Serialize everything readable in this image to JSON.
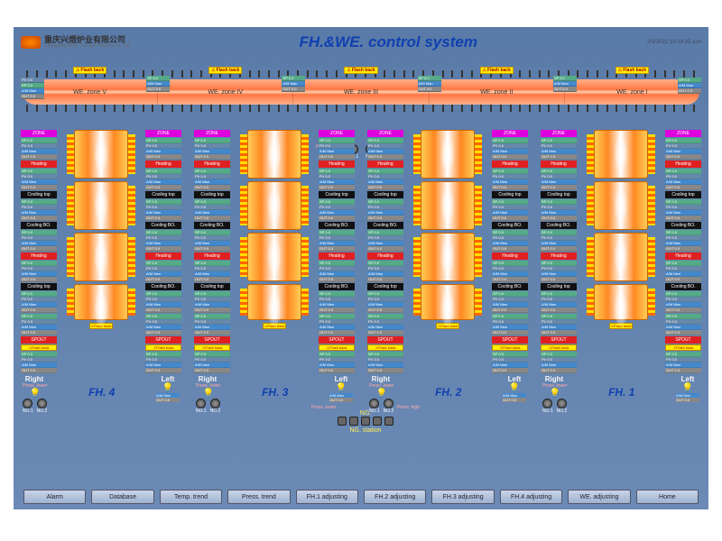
{
  "header": {
    "company_cn": "重庆兴煜炉业有限公司",
    "company_en": "Chongqing Xinyu Furnace Industry Co.,Ltd",
    "title": "FH.&WE. control system",
    "timestamp": "2/3/2021 10:19:25 a.m"
  },
  "labels": {
    "flash_back": "Flash back",
    "zone": "ZONE",
    "heating": "Heating",
    "cooling_top": "Cooling top",
    "cooling_bo": "Cooling BO.",
    "spout": "SPOUT",
    "right": "Right",
    "left": "Left",
    "press_lower": "Press. lower",
    "press_high": "Press. high",
    "ng": "NG.",
    "ng_station": "NG. station",
    "no1": "NO.1",
    "no2": "NO.2",
    "sp": "SP",
    "pv": "PV",
    "am": "A/M",
    "out": "OUT",
    "man": "Man",
    "val": "0.0"
  },
  "we_zones": [
    "WE. zone V",
    "WE. zone IV",
    "WE. zone III",
    "WE. zone II",
    "WE. zone I"
  ],
  "fh_units": [
    "FH. 4",
    "FH. 3",
    "FH. 2",
    "FH. 1"
  ],
  "buttons": [
    "Alarm",
    "Database",
    "Temp. trend",
    "Press. trend",
    "FH.1 adjusting",
    "FH.2 adjusting",
    "FH.3 adjusting",
    "FH.4 adjusting",
    "WE. adjusting",
    "Home"
  ],
  "colors": {
    "bg_top": "#5a7ba8",
    "title": "#1040b0",
    "heat": "#e02020",
    "zone": "#d000d0",
    "flash": "#ffee00"
  }
}
